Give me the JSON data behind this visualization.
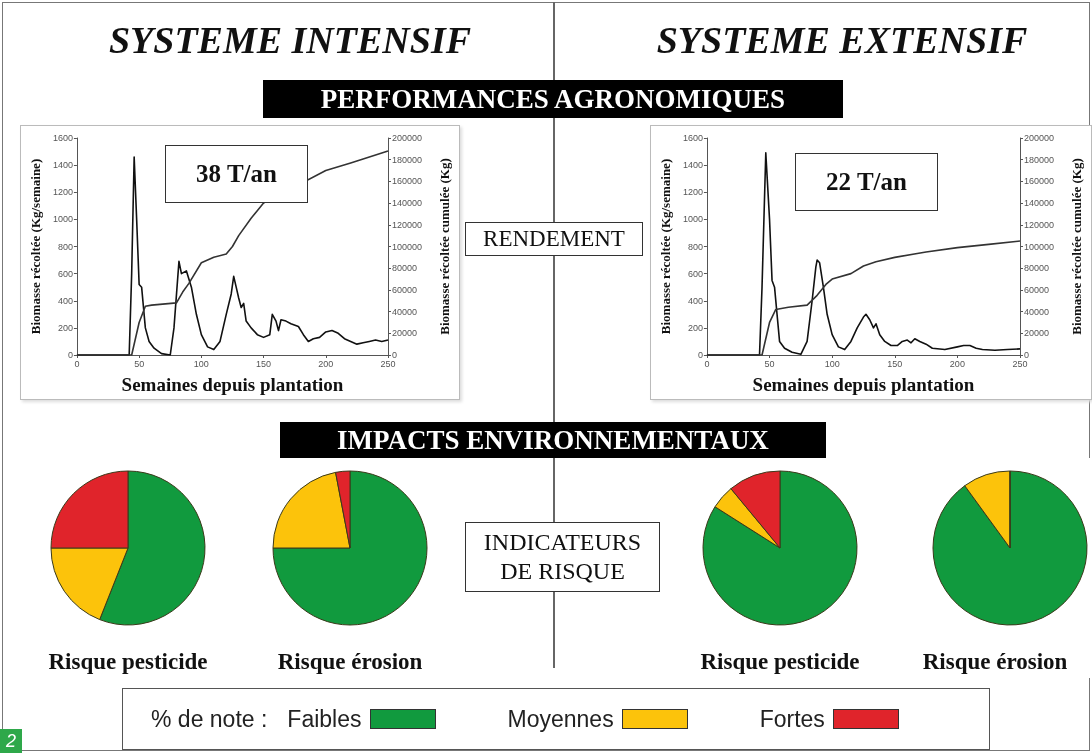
{
  "chart_data": [
    {
      "type": "line",
      "title": "SYSTEME INTENSIF",
      "xlabel": "Semaines depuis plantation",
      "ylabel": "Biomasse récoltée (Kg/semaine)",
      "y2label": "Biomasse récoltée cumulée (Kg)",
      "annotations": [
        "PERFORMANCES AGRONOMIQUES",
        "RENDEMENT",
        "38 T/an",
        "2"
      ],
      "xlim": [
        0,
        250
      ],
      "xticks": [
        0,
        50,
        100,
        150,
        200,
        250
      ],
      "ylim": [
        0,
        1600
      ],
      "yticks": [
        0,
        200,
        400,
        600,
        800,
        1000,
        1200,
        1400,
        1600
      ],
      "y2lim": [
        0,
        200000
      ],
      "y2ticks": [
        0,
        20000,
        40000,
        60000,
        80000,
        100000,
        120000,
        140000,
        160000,
        180000,
        200000
      ],
      "grid": false,
      "legend": false,
      "marker": "none",
      "line_style": "solid",
      "series": [
        {
          "color": "#111111",
          "x": [
            0,
            42,
            44,
            46,
            48,
            50,
            52,
            55,
            58,
            62,
            68,
            75,
            78,
            82,
            84,
            88,
            92,
            96,
            100,
            105,
            110,
            115,
            120,
            124,
            126,
            128,
            130,
            132,
            134,
            136,
            140,
            145,
            150,
            155,
            157,
            160,
            162,
            164,
            168,
            172,
            178,
            182,
            186,
            190,
            195,
            200,
            205,
            210,
            215,
            220,
            225,
            230,
            235,
            240,
            245,
            250
          ],
          "values": [
            0,
            0,
            600,
            1460,
            1000,
            520,
            500,
            200,
            100,
            50,
            10,
            0,
            200,
            690,
            600,
            620,
            500,
            300,
            150,
            60,
            40,
            100,
            300,
            450,
            580,
            500,
            420,
            350,
            380,
            250,
            200,
            150,
            130,
            150,
            300,
            250,
            180,
            260,
            250,
            230,
            210,
            150,
            100,
            120,
            130,
            170,
            180,
            160,
            120,
            100,
            80,
            90,
            100,
            110,
            100,
            110
          ]
        },
        {
          "color": "#333333",
          "axis": "y2",
          "x": [
            0,
            44,
            50,
            55,
            60,
            80,
            85,
            90,
            100,
            110,
            120,
            125,
            130,
            140,
            150,
            200,
            220,
            250
          ],
          "values": [
            0,
            0,
            30000,
            45000,
            46000,
            48000,
            58000,
            66000,
            85000,
            90000,
            93000,
            100000,
            110000,
            126000,
            140000,
            170000,
            177000,
            188000
          ]
        }
      ]
    },
    {
      "type": "line",
      "title": "SYSTEME EXTENSIF",
      "xlabel": "Semaines depuis plantation",
      "ylabel": "Biomasse récoltée (Kg/semaine)",
      "y2label": "Biomasse récoltée cumulée (Kg)",
      "annotations": [
        "22 T/an"
      ],
      "xlim": [
        0,
        250
      ],
      "xticks": [
        0,
        50,
        100,
        150,
        200,
        250
      ],
      "ylim": [
        0,
        1600
      ],
      "yticks": [
        0,
        200,
        400,
        600,
        800,
        1000,
        1200,
        1400,
        1600
      ],
      "y2lim": [
        0,
        200000
      ],
      "y2ticks": [
        0,
        20000,
        40000,
        60000,
        80000,
        100000,
        120000,
        140000,
        160000,
        180000,
        200000
      ],
      "grid": false,
      "legend": false,
      "marker": "none",
      "line_style": "solid",
      "series": [
        {
          "color": "#111111",
          "x": [
            0,
            42,
            44,
            47,
            50,
            52,
            54,
            56,
            58,
            62,
            68,
            75,
            80,
            84,
            87,
            88,
            90,
            93,
            96,
            100,
            105,
            110,
            115,
            120,
            125,
            127,
            130,
            133,
            135,
            138,
            142,
            147,
            152,
            156,
            160,
            163,
            166,
            170,
            175,
            180,
            190,
            200,
            205,
            210,
            215,
            220,
            230,
            240,
            250
          ],
          "values": [
            0,
            0,
            500,
            1490,
            1000,
            550,
            500,
            300,
            100,
            50,
            20,
            5,
            100,
            400,
            650,
            700,
            680,
            500,
            300,
            150,
            60,
            40,
            100,
            200,
            280,
            300,
            260,
            200,
            230,
            150,
            100,
            70,
            70,
            100,
            110,
            90,
            120,
            100,
            80,
            50,
            40,
            60,
            70,
            70,
            50,
            40,
            35,
            40,
            45
          ]
        },
        {
          "color": "#333333",
          "axis": "y2",
          "x": [
            0,
            44,
            50,
            55,
            65,
            80,
            88,
            95,
            100,
            115,
            125,
            135,
            150,
            175,
            200,
            225,
            250
          ],
          "values": [
            0,
            0,
            30000,
            42000,
            44000,
            46000,
            55000,
            65000,
            70000,
            75000,
            82000,
            86000,
            90000,
            95000,
            99000,
            102000,
            105000
          ]
        }
      ]
    },
    {
      "type": "pie",
      "title": "Risque pesticide",
      "annotations": [
        "IMPACTS ENVIRONNEMENTAUX",
        "INDICATEURS DE RISQUE"
      ],
      "legend": "bottom",
      "legend_title": "% de note :",
      "categories": [
        "Faibles",
        "Moyennes",
        "Fortes"
      ],
      "values": [
        56,
        19,
        25
      ],
      "colors": [
        "#119a3e",
        "#fcc30b",
        "#e0242b"
      ]
    },
    {
      "type": "pie",
      "title": "Risque érosion",
      "values": [
        75,
        22,
        3
      ],
      "colors": [
        "#119a3e",
        "#fcc30b",
        "#e0242b"
      ]
    },
    {
      "type": "pie",
      "title": "Risque pesticide",
      "values": [
        84,
        5,
        11
      ],
      "colors": [
        "#119a3e",
        "#fcc30b",
        "#e0242b"
      ]
    },
    {
      "type": "pie",
      "title": "Risque érosion",
      "values": [
        90,
        10,
        0
      ],
      "colors": [
        "#119a3e",
        "#fcc30b",
        "#e0242b"
      ]
    }
  ]
}
